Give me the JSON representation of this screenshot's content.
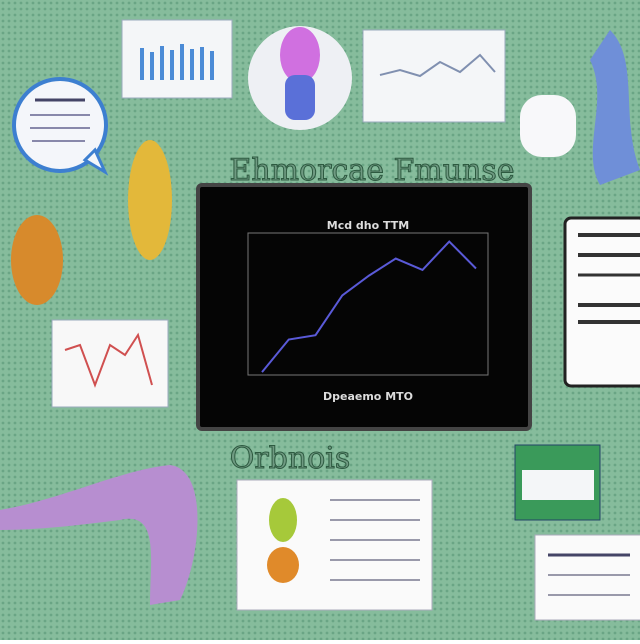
{
  "headline": "Ehmorcae Fmunse",
  "subheading": "Orbnois",
  "central_chart": {
    "type": "line",
    "title": "Mcd dho TTM",
    "x_label": "Dpeaemo MTO",
    "values": [
      2,
      25,
      28,
      56,
      70,
      82,
      74,
      94,
      75
    ],
    "color": "#5a5ad8",
    "ylim": [
      0,
      100
    ]
  }
}
